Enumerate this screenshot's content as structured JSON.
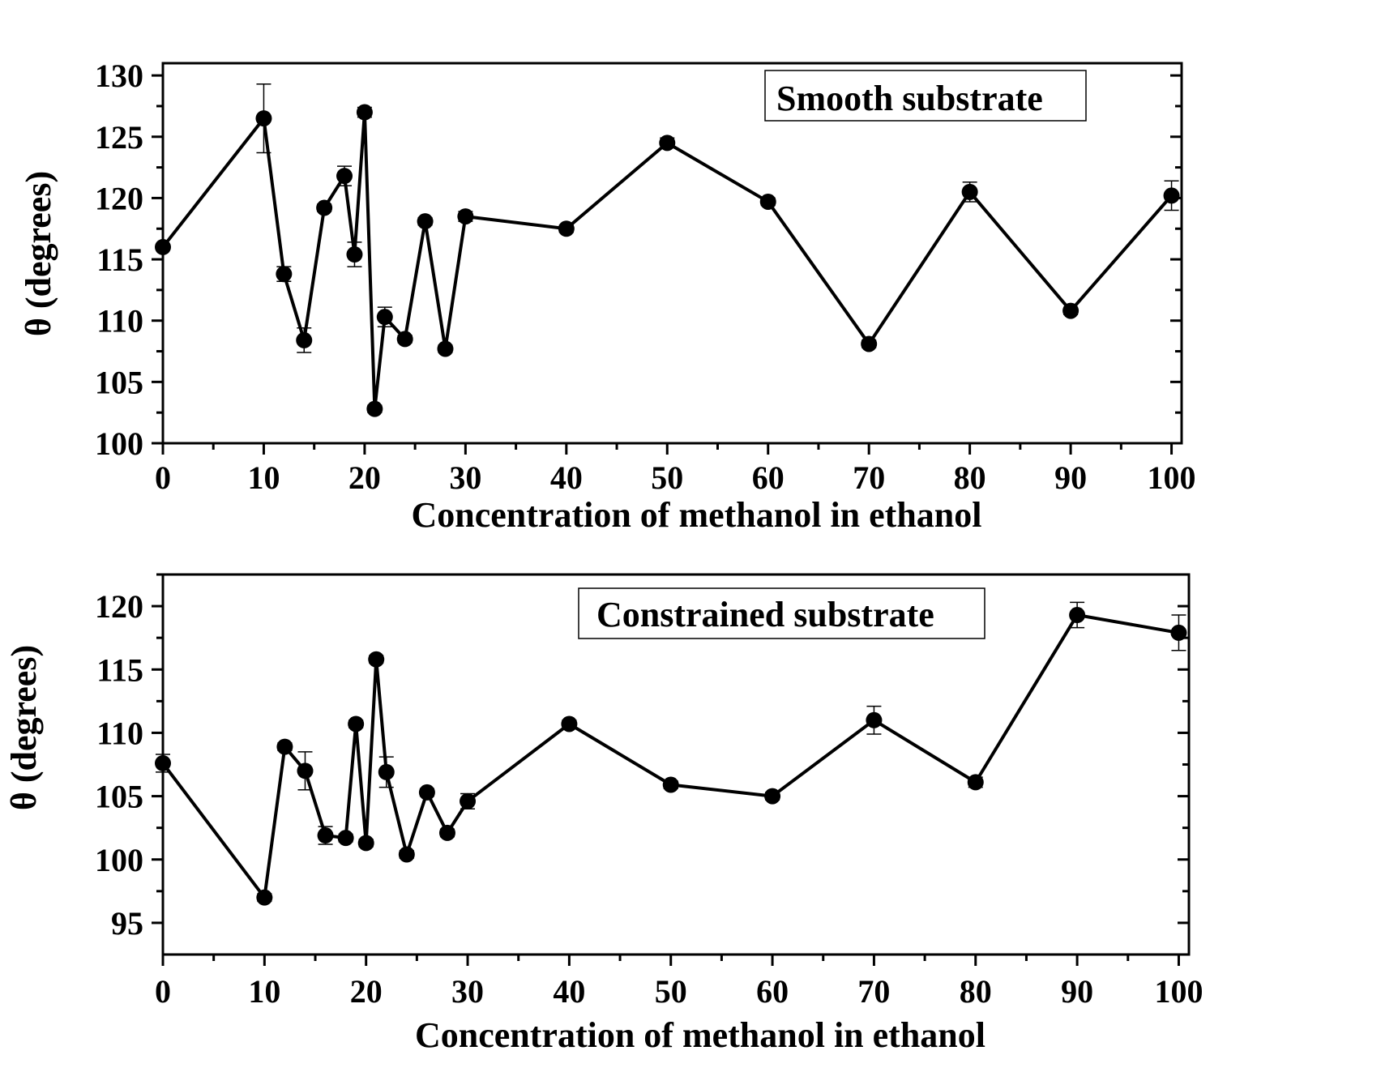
{
  "chart_data": [
    {
      "type": "line",
      "title": "Smooth substrate",
      "xlabel": "Concentration of methanol in ethanol",
      "ylabel": "θ (degrees)",
      "xlim": [
        0,
        101
      ],
      "ylim": [
        100,
        131
      ],
      "xticks": [
        0,
        10,
        20,
        30,
        40,
        50,
        60,
        70,
        80,
        90,
        100
      ],
      "yticks": [
        100,
        105,
        110,
        115,
        120,
        125,
        130
      ],
      "x": [
        0,
        10,
        12,
        14,
        16,
        18,
        19,
        20,
        21,
        22,
        24,
        26,
        28,
        30,
        40,
        50,
        60,
        70,
        80,
        90,
        100
      ],
      "y": [
        116,
        126.5,
        113.8,
        108.4,
        119.2,
        121.8,
        115.4,
        127,
        102.8,
        110.3,
        108.5,
        118.1,
        107.7,
        118.5,
        117.5,
        124.5,
        119.7,
        108.1,
        120.5,
        110.8,
        120.2
      ],
      "error": [
        0,
        2.8,
        0.6,
        1.0,
        0.3,
        0.8,
        1.0,
        0.4,
        0.3,
        0.8,
        0.3,
        0.3,
        0.3,
        0.4,
        0.3,
        0.4,
        0.3,
        0.3,
        0.8,
        0.3,
        1.2
      ]
    },
    {
      "type": "line",
      "title": "Constrained substrate",
      "xlabel": "Concentration of methanol in ethanol",
      "ylabel": "θ (degrees)",
      "xlim": [
        0,
        101
      ],
      "ylim": [
        92.5,
        122.5
      ],
      "xticks": [
        0,
        10,
        20,
        30,
        40,
        50,
        60,
        70,
        80,
        90,
        100
      ],
      "yticks": [
        95,
        100,
        105,
        110,
        115,
        120
      ],
      "x": [
        0,
        10,
        12,
        14,
        16,
        18,
        19,
        20,
        21,
        22,
        24,
        26,
        28,
        30,
        40,
        50,
        60,
        70,
        80,
        90,
        100
      ],
      "y": [
        107.6,
        97,
        108.9,
        107,
        101.9,
        101.7,
        110.7,
        101.3,
        115.8,
        106.9,
        100.4,
        105.3,
        102.1,
        104.6,
        110.7,
        105.9,
        105,
        111,
        106.1,
        119.3,
        117.9
      ],
      "error": [
        0.7,
        0.3,
        0.3,
        1.5,
        0.7,
        0.3,
        0.3,
        0.3,
        0.3,
        1.2,
        0.3,
        0.3,
        0.3,
        0.6,
        0.3,
        0.3,
        0.3,
        1.1,
        0.4,
        1.0,
        1.4
      ]
    }
  ]
}
